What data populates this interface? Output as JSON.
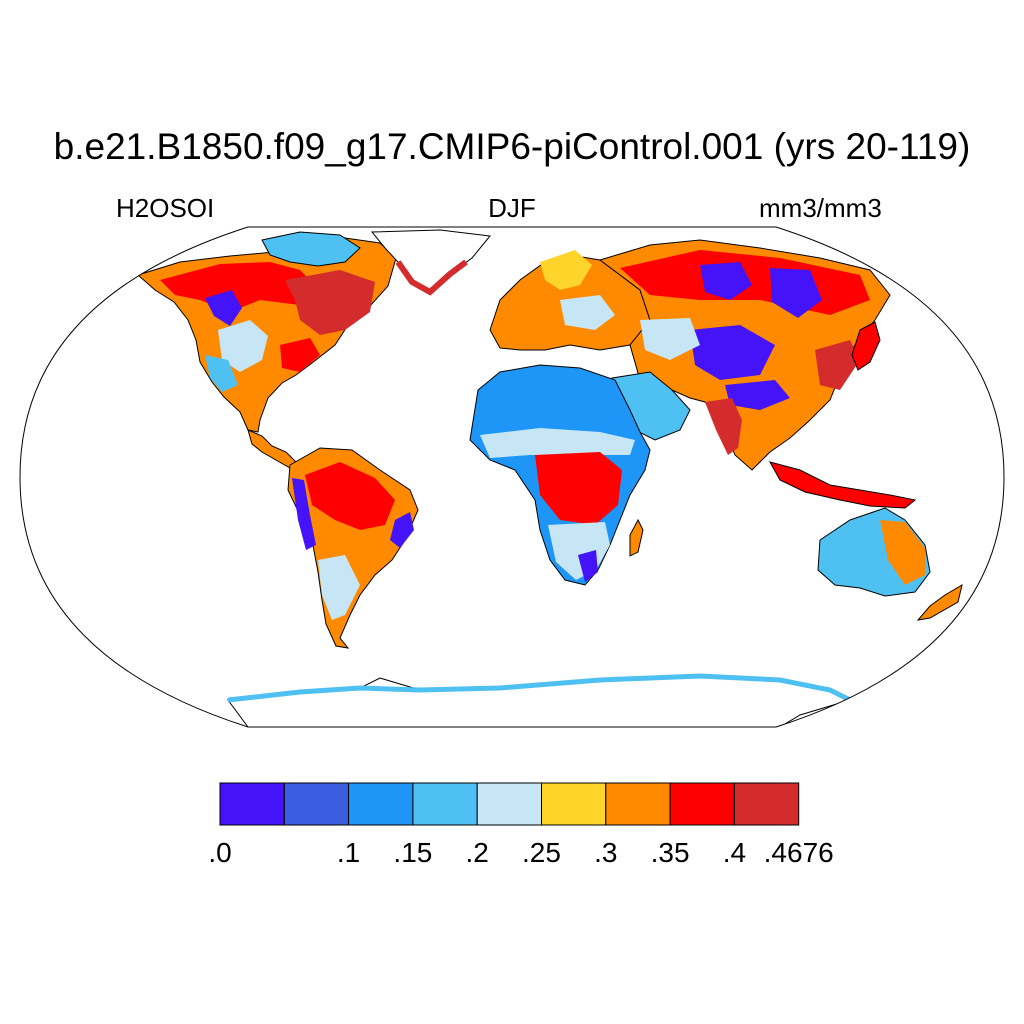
{
  "title": "b.e21.B1850.f09_g17.CMIP6-piControl.001 (yrs 20-119)",
  "left_label": "H2OSOI",
  "center_label": "DJF",
  "right_label": "mm3/mm3",
  "colorbar": {
    "colors": [
      "#4413f7",
      "#3b5ee0",
      "#1e96f7",
      "#4fc0f2",
      "#c6e6f6",
      "#ffd52b",
      "#ff8a00",
      "#ff0000",
      "#d42c2c"
    ],
    "tick_labels": [
      ".0",
      ".1",
      ".15",
      ".2",
      ".25",
      ".3",
      ".35",
      ".4",
      ".4676"
    ],
    "tick_values": [
      0,
      0.1,
      0.15,
      0.2,
      0.25,
      0.3,
      0.35,
      0.4,
      0.4676
    ]
  },
  "map": {
    "projection": "Robinson",
    "ocean_color": "#ffffff",
    "coastline_color": "#000000"
  }
}
